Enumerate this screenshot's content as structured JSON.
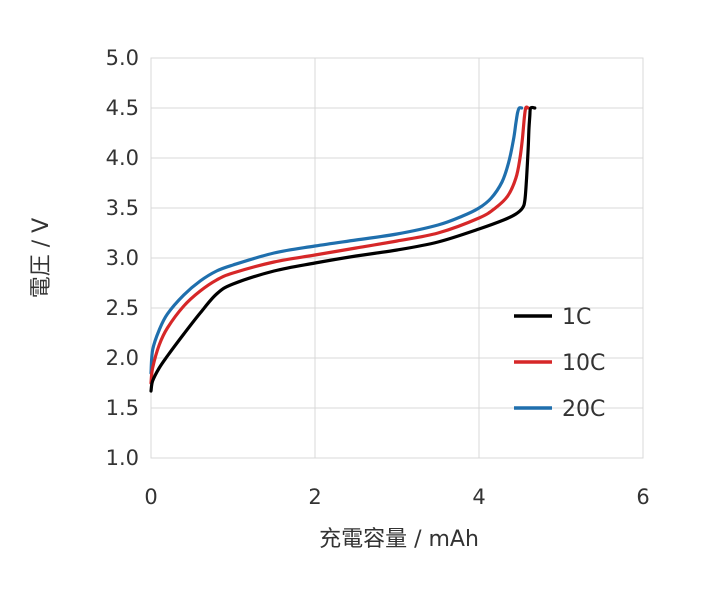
{
  "chart_data": {
    "type": "line",
    "title": "",
    "xlabel": "充電容量 / mAh",
    "ylabel": "電圧 / V",
    "xlim": [
      0,
      6
    ],
    "ylim": [
      1.0,
      5.0
    ],
    "xticks": [
      0,
      2,
      4,
      6
    ],
    "yticks": [
      1.0,
      1.5,
      2.0,
      2.5,
      3.0,
      3.5,
      4.0,
      4.5,
      5.0
    ],
    "xtick_labels": [
      "0",
      "2",
      "4",
      "6"
    ],
    "ytick_labels": [
      "1.0",
      "1.5",
      "2.0",
      "2.5",
      "3.0",
      "3.5",
      "4.0",
      "4.5",
      "5.0"
    ],
    "grid": true,
    "legend_position": "right",
    "series": [
      {
        "name": "1C",
        "color": "#000000",
        "x": [
          0.0,
          0.02,
          0.1,
          0.2,
          0.4,
          0.6,
          0.8,
          1.0,
          1.5,
          2.0,
          2.5,
          3.0,
          3.5,
          4.0,
          4.3,
          4.45,
          4.53,
          4.56,
          4.58,
          4.6,
          4.61,
          4.62,
          4.63,
          4.68
        ],
        "y": [
          1.67,
          1.77,
          1.9,
          2.02,
          2.24,
          2.45,
          2.64,
          2.74,
          2.87,
          2.95,
          3.02,
          3.08,
          3.16,
          3.29,
          3.38,
          3.44,
          3.5,
          3.58,
          3.8,
          4.1,
          4.3,
          4.42,
          4.5,
          4.5
        ]
      },
      {
        "name": "10C",
        "color": "#d62728",
        "x": [
          0.0,
          0.02,
          0.1,
          0.2,
          0.4,
          0.6,
          0.8,
          1.0,
          1.5,
          2.0,
          2.5,
          3.0,
          3.5,
          4.0,
          4.2,
          4.35,
          4.45,
          4.5,
          4.53,
          4.55,
          4.57,
          4.6
        ],
        "y": [
          1.75,
          1.9,
          2.13,
          2.3,
          2.52,
          2.67,
          2.78,
          2.85,
          2.96,
          3.03,
          3.1,
          3.17,
          3.25,
          3.4,
          3.5,
          3.62,
          3.8,
          4.0,
          4.2,
          4.38,
          4.5,
          4.5
        ]
      },
      {
        "name": "20C",
        "color": "#1f6fad",
        "x": [
          0.0,
          0.02,
          0.1,
          0.2,
          0.4,
          0.6,
          0.8,
          1.0,
          1.5,
          2.0,
          2.5,
          3.0,
          3.5,
          3.8,
          4.0,
          4.15,
          4.28,
          4.36,
          4.42,
          4.45,
          4.47,
          4.49,
          4.52
        ],
        "y": [
          1.85,
          2.08,
          2.28,
          2.44,
          2.63,
          2.77,
          2.87,
          2.93,
          3.05,
          3.12,
          3.18,
          3.24,
          3.33,
          3.42,
          3.5,
          3.6,
          3.76,
          3.95,
          4.18,
          4.35,
          4.45,
          4.5,
          4.5
        ]
      }
    ]
  }
}
